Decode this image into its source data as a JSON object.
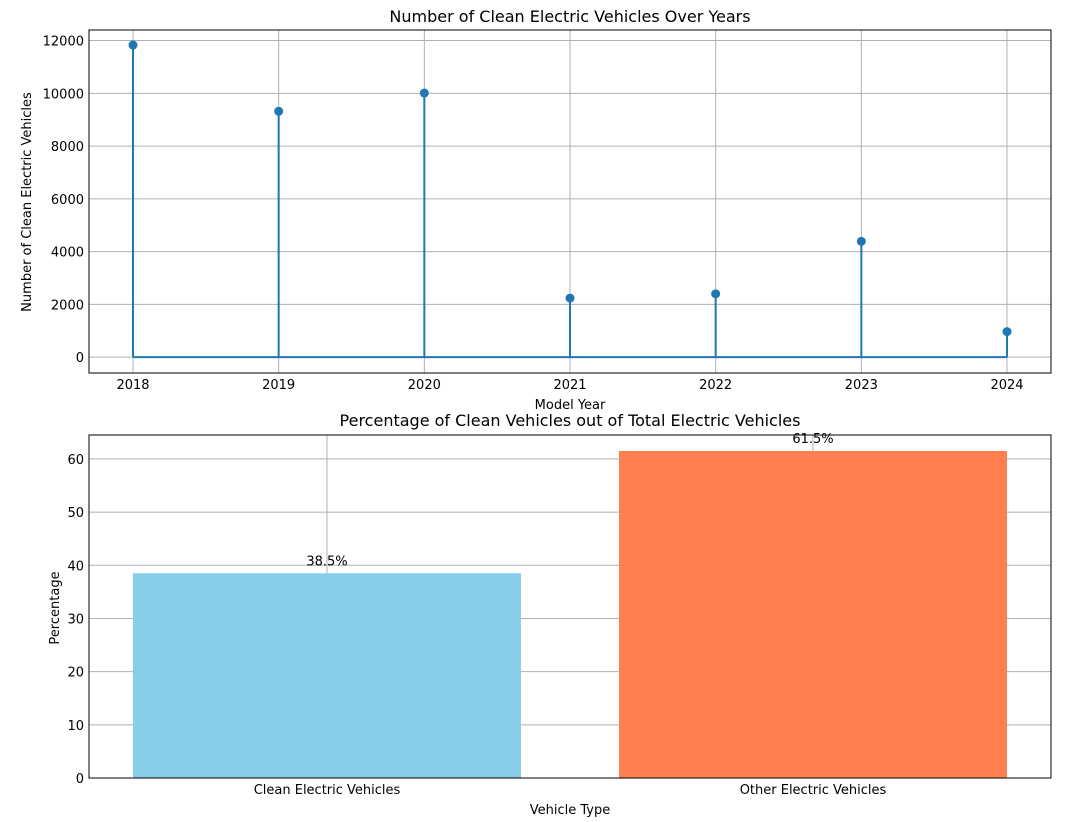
{
  "chart_data": [
    {
      "type": "stem",
      "title": "Number of Clean Electric Vehicles Over Years",
      "xlabel": "Model Year",
      "ylabel": "Number of Clean Electric Vehicles",
      "categories": [
        "2018",
        "2019",
        "2020",
        "2021",
        "2022",
        "2023",
        "2024"
      ],
      "values": [
        11830,
        9320,
        10010,
        2240,
        2400,
        4390,
        970
      ],
      "ylim": [
        -600,
        12400
      ],
      "yticks": [
        0,
        2000,
        4000,
        6000,
        8000,
        10000,
        12000
      ],
      "grid": true,
      "color": "#1f77b4"
    },
    {
      "type": "bar",
      "title": "Percentage of Clean Vehicles out of Total Electric Vehicles",
      "xlabel": "Vehicle Type",
      "ylabel": "Percentage",
      "categories": [
        "Clean Electric Vehicles",
        "Other Electric Vehicles"
      ],
      "values": [
        38.5,
        61.5
      ],
      "data_labels": [
        "38.5%",
        "61.5%"
      ],
      "ylim": [
        0,
        64.5
      ],
      "yticks": [
        0,
        10,
        20,
        30,
        40,
        50,
        60
      ],
      "grid": true,
      "colors": [
        "#87ceeb",
        "#ff7f50"
      ]
    }
  ]
}
